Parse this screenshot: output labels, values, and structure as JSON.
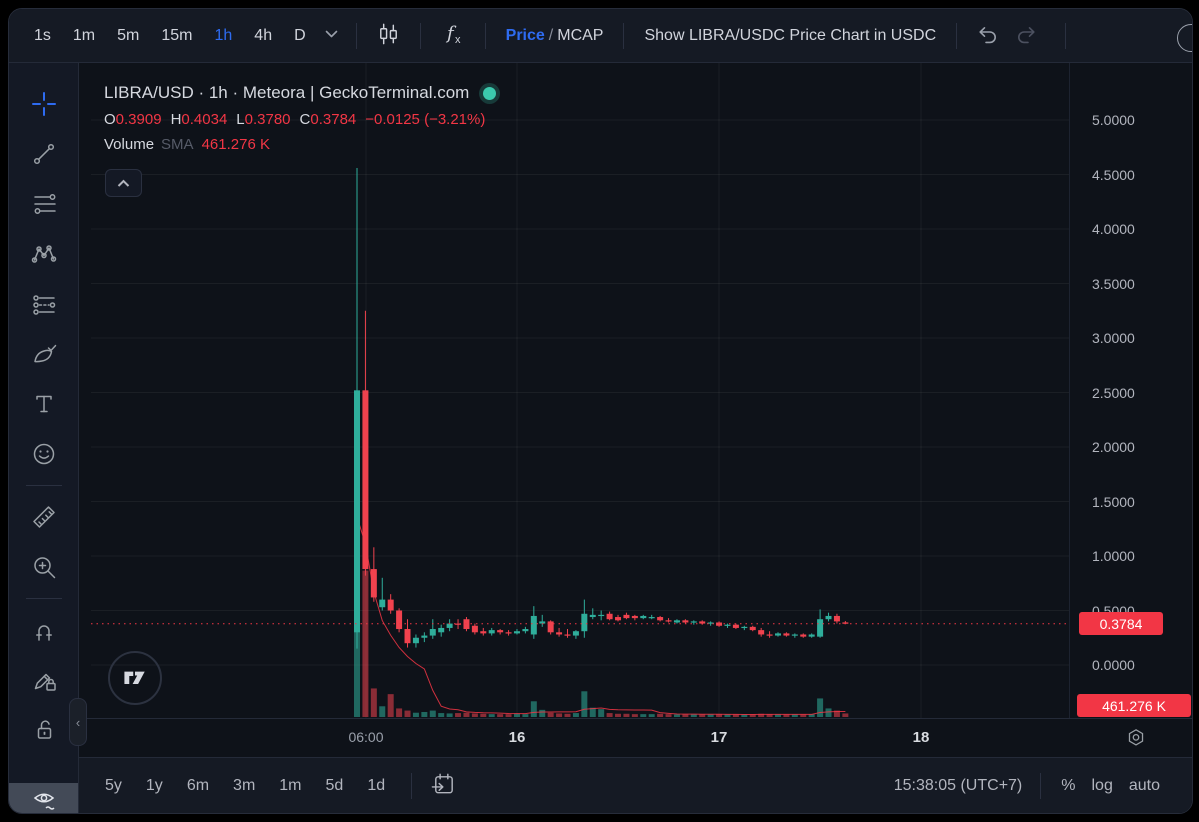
{
  "topbar": {
    "timeframes": [
      "1s",
      "1m",
      "5m",
      "15m",
      "1h",
      "4h",
      "D"
    ],
    "active_timeframe": "1h",
    "price_mcap": {
      "price": "Price",
      "slash": "/",
      "mcap": "MCAP"
    },
    "usdc_toggle": "Show LIBRA/USDC Price Chart in USDC",
    "icons": [
      "chevron-down",
      "candlestick-style",
      "indicators-fx",
      "undo",
      "redo",
      "clipped-circle"
    ]
  },
  "sidebar": {
    "tools": [
      "crosshair",
      "trend-line",
      "fib-retracement",
      "xabcd-pattern",
      "prediction",
      "brush",
      "text",
      "emoji",
      "ruler",
      "zoom-in",
      "magnet",
      "drawing-lock",
      "lock-all",
      "hide-drawings"
    ]
  },
  "legend": {
    "title": "LIBRA/USD · 1h · Meteora | GeckoTerminal.com",
    "ohlc": {
      "o_label": "O",
      "o": "0.3909",
      "h_label": "H",
      "h": "0.4034",
      "l_label": "L",
      "l": "0.3780",
      "c_label": "C",
      "c": "0.3784",
      "change": "−0.0125 (−3.21%)"
    },
    "volume_label": "Volume",
    "sma_label": "SMA",
    "volume_value": "461.276 K"
  },
  "axis": {
    "price_badge": "0.3784",
    "volume_badge": "461.276 K"
  },
  "bottom": {
    "ranges": [
      "5y",
      "1y",
      "6m",
      "3m",
      "1m",
      "5d",
      "1d"
    ],
    "clock": "15:38:05 (UTC+7)",
    "percent": "%",
    "log": "log",
    "auto": "auto"
  },
  "colors": {
    "up": "#2fae9b",
    "down": "#f0424e",
    "accent": "#2e6bf0",
    "last_price": "#f23645",
    "badge": "#f23645"
  },
  "chart_data": {
    "type": "candlestick",
    "title": "LIBRA/USD · 1h · Meteora | GeckoTerminal.com",
    "pair": "LIBRA/USD",
    "interval": "1h",
    "venue": "Meteora",
    "source": "GeckoTerminal.com",
    "ylim": [
      0,
      5
    ],
    "y_ticks": [
      "5.0000",
      "4.5000",
      "4.0000",
      "3.5000",
      "3.0000",
      "2.5000",
      "2.0000",
      "1.5000",
      "1.0000",
      "0.5000",
      "0.0000"
    ],
    "x_ticks": [
      {
        "label": "06:00",
        "x": 287,
        "major": false
      },
      {
        "label": "16",
        "x": 438,
        "major": true
      },
      {
        "label": "17",
        "x": 640,
        "major": true
      },
      {
        "label": "18",
        "x": 842,
        "major": true
      }
    ],
    "last_price": 0.3784,
    "volume_sma_window": 9,
    "candles": [
      [
        0.3,
        4.56,
        0.15,
        2.52
      ],
      [
        2.52,
        3.25,
        0.82,
        0.88
      ],
      [
        0.88,
        1.08,
        0.58,
        0.62
      ],
      [
        0.53,
        0.8,
        0.5,
        0.6
      ],
      [
        0.6,
        0.65,
        0.47,
        0.5
      ],
      [
        0.5,
        0.52,
        0.3,
        0.33
      ],
      [
        0.33,
        0.42,
        0.16,
        0.2
      ],
      [
        0.2,
        0.28,
        0.16,
        0.25
      ],
      [
        0.25,
        0.3,
        0.21,
        0.27
      ],
      [
        0.27,
        0.42,
        0.24,
        0.33
      ],
      [
        0.3,
        0.37,
        0.26,
        0.34
      ],
      [
        0.34,
        0.42,
        0.31,
        0.38
      ],
      [
        0.38,
        0.42,
        0.33,
        0.37
      ],
      [
        0.42,
        0.44,
        0.31,
        0.33
      ],
      [
        0.36,
        0.38,
        0.28,
        0.3
      ],
      [
        0.31,
        0.34,
        0.27,
        0.29
      ],
      [
        0.29,
        0.34,
        0.27,
        0.32
      ],
      [
        0.32,
        0.33,
        0.28,
        0.3
      ],
      [
        0.3,
        0.32,
        0.27,
        0.29
      ],
      [
        0.29,
        0.33,
        0.28,
        0.31
      ],
      [
        0.31,
        0.35,
        0.29,
        0.33
      ],
      [
        0.28,
        0.54,
        0.24,
        0.45
      ],
      [
        0.38,
        0.46,
        0.35,
        0.4
      ],
      [
        0.4,
        0.41,
        0.28,
        0.3
      ],
      [
        0.3,
        0.34,
        0.26,
        0.28
      ],
      [
        0.28,
        0.33,
        0.25,
        0.27
      ],
      [
        0.27,
        0.32,
        0.24,
        0.31
      ],
      [
        0.31,
        0.6,
        0.25,
        0.47
      ],
      [
        0.44,
        0.52,
        0.42,
        0.46
      ],
      [
        0.45,
        0.5,
        0.41,
        0.46
      ],
      [
        0.47,
        0.49,
        0.41,
        0.42
      ],
      [
        0.44,
        0.46,
        0.4,
        0.41
      ],
      [
        0.46,
        0.48,
        0.42,
        0.43
      ],
      [
        0.45,
        0.46,
        0.41,
        0.43
      ],
      [
        0.43,
        0.46,
        0.42,
        0.45
      ],
      [
        0.43,
        0.46,
        0.42,
        0.44
      ],
      [
        0.44,
        0.45,
        0.4,
        0.41
      ],
      [
        0.41,
        0.43,
        0.39,
        0.4
      ],
      [
        0.39,
        0.42,
        0.38,
        0.41
      ],
      [
        0.41,
        0.42,
        0.38,
        0.39
      ],
      [
        0.39,
        0.41,
        0.37,
        0.4
      ],
      [
        0.4,
        0.41,
        0.37,
        0.38
      ],
      [
        0.38,
        0.4,
        0.36,
        0.39
      ],
      [
        0.39,
        0.4,
        0.35,
        0.36
      ],
      [
        0.36,
        0.38,
        0.34,
        0.37
      ],
      [
        0.37,
        0.38,
        0.33,
        0.34
      ],
      [
        0.34,
        0.36,
        0.32,
        0.35
      ],
      [
        0.35,
        0.36,
        0.31,
        0.32
      ],
      [
        0.32,
        0.34,
        0.26,
        0.28
      ],
      [
        0.28,
        0.31,
        0.25,
        0.27
      ],
      [
        0.27,
        0.3,
        0.26,
        0.29
      ],
      [
        0.29,
        0.3,
        0.26,
        0.27
      ],
      [
        0.27,
        0.29,
        0.25,
        0.28
      ],
      [
        0.28,
        0.29,
        0.25,
        0.26
      ],
      [
        0.26,
        0.29,
        0.25,
        0.28
      ],
      [
        0.26,
        0.51,
        0.25,
        0.42
      ],
      [
        0.42,
        0.48,
        0.4,
        0.45
      ],
      [
        0.45,
        0.47,
        0.38,
        0.4
      ],
      [
        0.3909,
        0.4034,
        0.378,
        0.3784
      ]
    ],
    "volumes": [
      28,
      20.5,
      4.0,
      1.5,
      3.2,
      1.2,
      0.9,
      0.6,
      0.7,
      0.9,
      0.55,
      0.5,
      0.55,
      0.6,
      0.5,
      0.45,
      0.4,
      0.4,
      0.4,
      0.5,
      0.4,
      2.2,
      1.0,
      0.6,
      0.5,
      0.45,
      0.55,
      3.6,
      1.3,
      1.1,
      0.55,
      0.45,
      0.45,
      0.4,
      0.4,
      0.4,
      0.45,
      0.4,
      0.35,
      0.35,
      0.35,
      0.35,
      0.35,
      0.4,
      0.35,
      0.35,
      0.35,
      0.35,
      0.45,
      0.4,
      0.35,
      0.35,
      0.35,
      0.35,
      0.4,
      2.6,
      1.2,
      0.9,
      0.5
    ]
  }
}
